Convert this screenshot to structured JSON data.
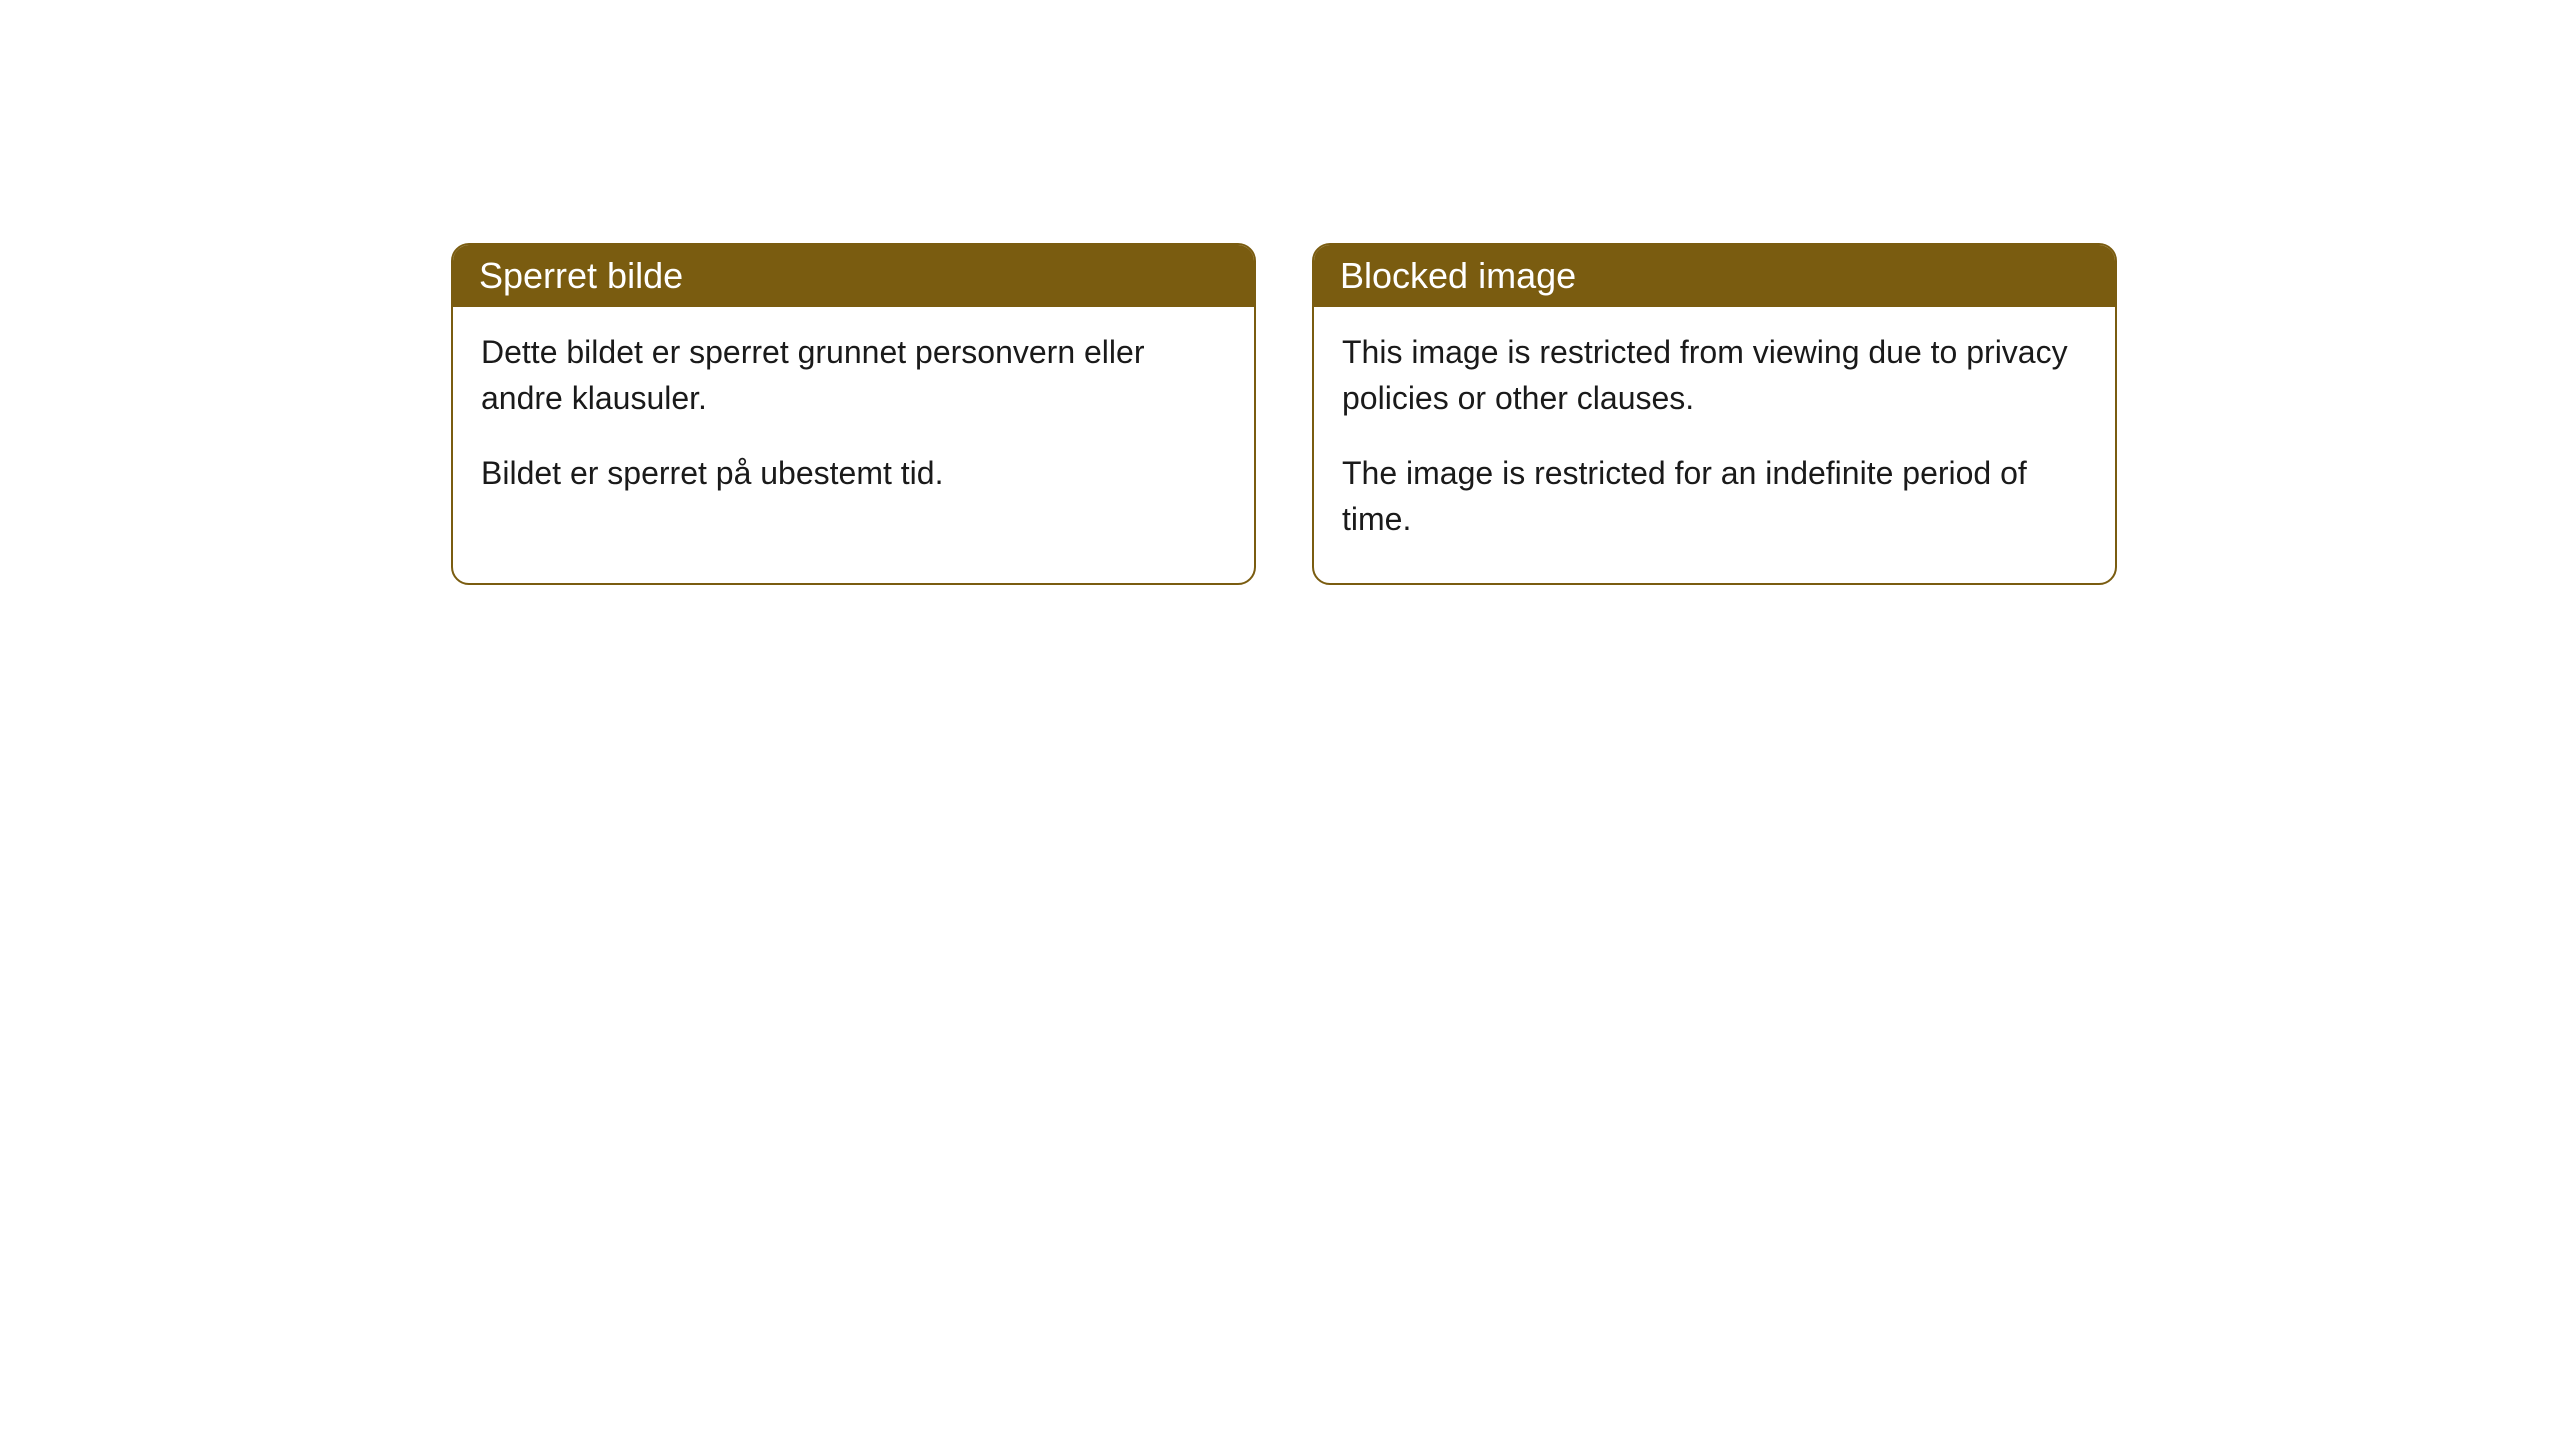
{
  "cards": [
    {
      "title": "Sperret bilde",
      "paragraph1": "Dette bildet er sperret grunnet personvern eller andre klausuler.",
      "paragraph2": "Bildet er sperret på ubestemt tid."
    },
    {
      "title": "Blocked image",
      "paragraph1": "This image is restricted from viewing due to privacy policies or other clauses.",
      "paragraph2": "The image is restricted for an indefinite period of time."
    }
  ],
  "styling": {
    "header_background": "#7a5c10",
    "header_text_color": "#ffffff",
    "card_border_color": "#7a5c10",
    "card_background": "#ffffff",
    "body_text_color": "#1a1a1a",
    "page_background": "#ffffff",
    "border_radius": 18,
    "header_fontsize": 36,
    "body_fontsize": 32
  }
}
